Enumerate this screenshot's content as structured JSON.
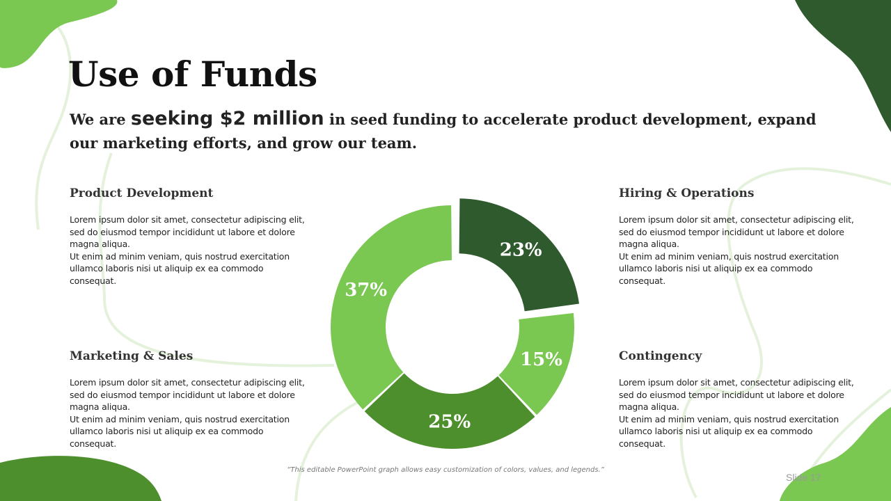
{
  "slide": {
    "title": "Use of Funds",
    "subtitle": {
      "pre": "We are ",
      "emphasis": "seeking $2 million",
      "post": " in seed funding to accelerate product development, expand our marketing efforts, and grow our team."
    },
    "sections": {
      "product_development": {
        "heading": "Product Development",
        "body": "Lorem ipsum dolor sit amet, consectetur adipiscing elit, sed do eiusmod tempor incididunt ut labore et dolore magna aliqua.\nUt enim ad minim veniam, quis nostrud exercitation ullamco laboris nisi ut aliquip ex ea commodo consequat."
      },
      "hiring_operations": {
        "heading": "Hiring & Operations",
        "body": "Lorem ipsum dolor sit amet, consectetur adipiscing elit, sed do eiusmod tempor incididunt ut labore et dolore magna aliqua.\nUt enim ad minim veniam, quis nostrud exercitation ullamco laboris nisi ut aliquip ex ea commodo consequat."
      },
      "marketing_sales": {
        "heading": "Marketing & Sales",
        "body": "Lorem ipsum dolor sit amet, consectetur adipiscing elit, sed do eiusmod tempor incididunt ut labore et dolore magna aliqua.\nUt enim ad minim veniam, quis nostrud exercitation ullamco laboris nisi ut aliquip ex ea commodo consequat."
      },
      "contingency": {
        "heading": "Contingency",
        "body": "Lorem ipsum dolor sit amet, consectetur adipiscing elit, sed do eiusmod tempor incididunt ut labore et dolore magna aliqua.\nUt enim ad minim veniam, quis nostrud exercitation ullamco laboris nisi ut aliquip ex ea commodo consequat."
      }
    },
    "caption": "“This editable PowerPoint graph allows easy customization of colors, values, and legends.”",
    "slide_number": "Slide 17"
  },
  "colors": {
    "dark_green": "#2f5a2e",
    "mid_green": "#4d8f2c",
    "light_green": "#7ac752",
    "pale_line": "#e4f2dc",
    "background": "#ffffff"
  },
  "chart_data": {
    "type": "pie",
    "donut": true,
    "values": [
      23,
      15,
      25,
      37
    ],
    "labels": [
      "23%",
      "15%",
      "25%",
      "37%"
    ],
    "colors": [
      "#2f5a2e",
      "#7ac752",
      "#4d8f2c",
      "#7ac752"
    ],
    "exploded_index": 0
  }
}
